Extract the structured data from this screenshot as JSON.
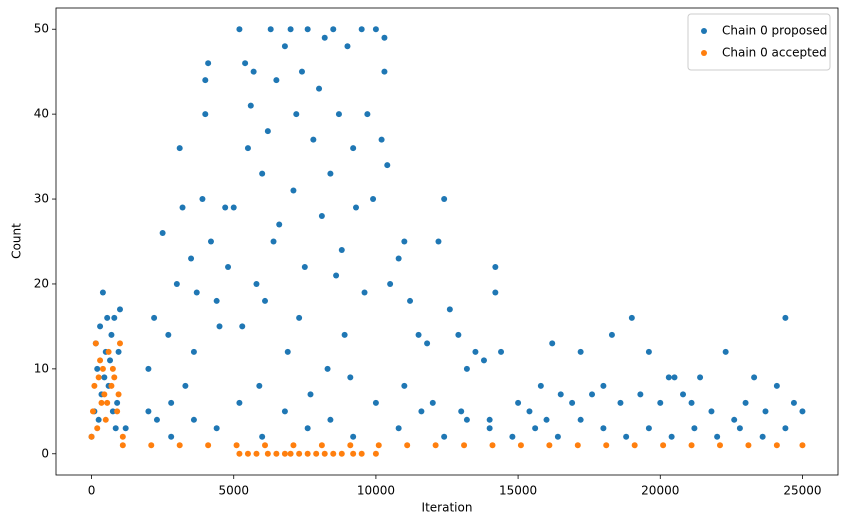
{
  "chart_data": {
    "type": "scatter",
    "x_label": "Iteration",
    "y_label": "Count",
    "xlim": [
      -1250,
      26250
    ],
    "ylim": [
      -2.5,
      52.5
    ],
    "xticks": [
      0,
      5000,
      10000,
      15000,
      20000,
      25000
    ],
    "yticks": [
      0,
      10,
      20,
      30,
      40,
      50
    ],
    "grid": false,
    "legend": "upper right",
    "series": [
      {
        "name": "Chain 0 proposed",
        "color": "#1f77b4",
        "x": [
          0,
          100,
          200,
          300,
          400,
          500,
          600,
          700,
          800,
          900,
          1000,
          150,
          350,
          650,
          850,
          250,
          450,
          550,
          750,
          950,
          2000,
          2200,
          2500,
          2700,
          3000,
          3100,
          3200,
          3500,
          3700,
          3900,
          4000,
          4000,
          4100,
          4200,
          4500,
          4800,
          3300,
          2800,
          2300,
          3600,
          4400,
          4700,
          5000,
          5200,
          5400,
          5500,
          5600,
          5700,
          5800,
          6000,
          6200,
          6300,
          6500,
          6600,
          6800,
          7000,
          7100,
          7200,
          7400,
          7500,
          7600,
          7800,
          8000,
          8100,
          8200,
          8400,
          8500,
          8700,
          8800,
          9000,
          9200,
          9300,
          9500,
          9700,
          9900,
          10000,
          10200,
          10300,
          10400,
          10300,
          5300,
          6100,
          6900,
          7300,
          8300,
          8900,
          9600,
          5900,
          7700,
          9100,
          6400,
          8600,
          10500,
          10800,
          11000,
          11200,
          11500,
          11800,
          12200,
          12400,
          12600,
          12900,
          13200,
          13500,
          13800,
          14200,
          14200,
          14400,
          11000,
          12000,
          13000,
          14000,
          15000,
          15400,
          15800,
          16200,
          16000,
          16500,
          16900,
          17200,
          17600,
          18000,
          18300,
          18600,
          19000,
          19300,
          19600,
          20000,
          20300,
          20500,
          20800,
          21100,
          21400,
          21800,
          22300,
          22600,
          23000,
          23300,
          23700,
          24100,
          24400,
          24700,
          25000,
          1200,
          2000,
          2800,
          3600,
          4400,
          5200,
          6000,
          6800,
          7600,
          8400,
          9200,
          10000,
          10800,
          11600,
          12400,
          13200,
          14000,
          14800,
          15600,
          16400,
          17200,
          18000,
          18800,
          19600,
          20400,
          21200,
          22000,
          22800,
          23600,
          24400
        ],
        "values": [
          2,
          5,
          10,
          15,
          19,
          12,
          8,
          14,
          16,
          6,
          17,
          13,
          7,
          11,
          3,
          4,
          9,
          16,
          5,
          12,
          10,
          16,
          26,
          14,
          20,
          36,
          29,
          23,
          19,
          30,
          40,
          44,
          46,
          25,
          15,
          22,
          8,
          6,
          4,
          12,
          18,
          29,
          29,
          50,
          46,
          36,
          41,
          45,
          20,
          33,
          38,
          50,
          44,
          27,
          48,
          50,
          31,
          40,
          45,
          22,
          50,
          37,
          43,
          28,
          49,
          33,
          50,
          40,
          24,
          48,
          36,
          29,
          50,
          40,
          30,
          50,
          37,
          49,
          34,
          45,
          15,
          18,
          12,
          16,
          10,
          14,
          19,
          8,
          7,
          9,
          25,
          21,
          20,
          23,
          25,
          18,
          14,
          13,
          25,
          30,
          17,
          14,
          10,
          12,
          11,
          22,
          19,
          12,
          8,
          6,
          5,
          4,
          6,
          5,
          8,
          13,
          4,
          7,
          6,
          12,
          7,
          8,
          14,
          6,
          16,
          7,
          12,
          6,
          9,
          9,
          7,
          6,
          9,
          5,
          12,
          4,
          6,
          9,
          5,
          8,
          16,
          6,
          5,
          3,
          5,
          2,
          4,
          3,
          6,
          2,
          5,
          3,
          4,
          2,
          6,
          3,
          5,
          2,
          4,
          3,
          2,
          3,
          2,
          4,
          3,
          2,
          3,
          2,
          3,
          2,
          3,
          2,
          3
        ]
      },
      {
        "name": "Chain 0 accepted",
        "color": "#ff7f0e",
        "x": [
          0,
          50,
          100,
          150,
          200,
          250,
          300,
          350,
          400,
          450,
          500,
          600,
          700,
          800,
          900,
          1000,
          1100,
          550,
          750,
          950,
          1100,
          2100,
          3100,
          4100,
          5100,
          6100,
          7100,
          8100,
          9100,
          10100,
          11100,
          12100,
          13100,
          14100,
          15100,
          16100,
          17100,
          18100,
          19100,
          20100,
          21100,
          22100,
          23100,
          24100,
          25000,
          5200,
          5500,
          5800,
          6200,
          6500,
          6800,
          7000,
          7300,
          7600,
          7900,
          8200,
          8500,
          8800,
          9200,
          9500,
          10000
        ],
        "values": [
          2,
          5,
          8,
          13,
          3,
          9,
          11,
          6,
          10,
          7,
          4,
          12,
          8,
          9,
          5,
          13,
          2,
          6,
          10,
          7,
          1,
          1,
          1,
          1,
          1,
          1,
          1,
          1,
          1,
          1,
          1,
          1,
          1,
          1,
          1,
          1,
          1,
          1,
          1,
          1,
          1,
          1,
          1,
          1,
          1,
          0,
          0,
          0,
          0,
          0,
          0,
          0,
          0,
          0,
          0,
          0,
          0,
          0,
          0,
          0,
          0
        ]
      }
    ]
  }
}
